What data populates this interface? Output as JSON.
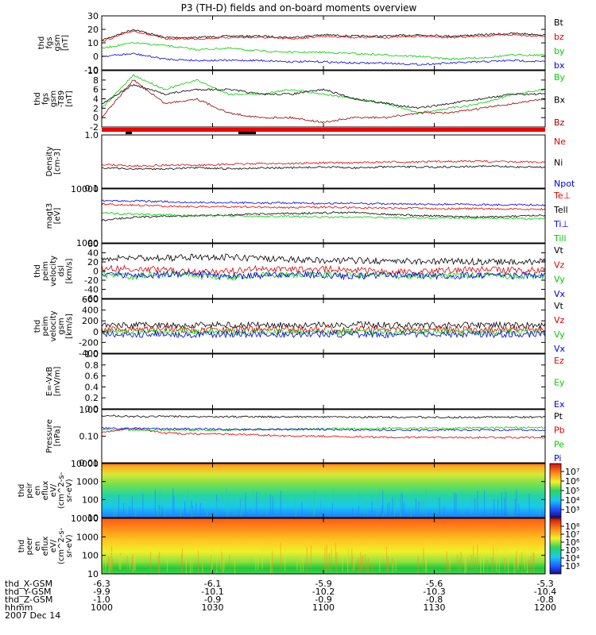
{
  "title": "P3 (TH-D) fields and on-board moments overview",
  "footer": {
    "labels": [
      "thd_X-GSM",
      "thd_Y-GSM",
      "thd_Z-GSM",
      "hhmm",
      "2007 Dec 14"
    ],
    "columns": [
      [
        "-6.3",
        "-9.9",
        "-1.0",
        "1000"
      ],
      [
        "-6.1",
        "-10.1",
        "-0.9",
        "1030"
      ],
      [
        "-5.9",
        "-10.2",
        "-0.9",
        "1100"
      ],
      [
        "-5.6",
        "-10.3",
        "-0.8",
        "1130"
      ],
      [
        "-5.3",
        "-10.4",
        "-0.8",
        "1200"
      ]
    ]
  },
  "colorbars": [
    {
      "ticks": [
        "10⁷",
        "10⁶",
        "10⁵",
        "10⁴",
        "10³"
      ]
    },
    {
      "ticks": [
        "10⁸",
        "10⁷",
        "10⁶",
        "10⁵",
        "10⁴",
        "10³"
      ]
    }
  ],
  "chart_data": {
    "type": "line",
    "x_range": [
      "1000",
      "1200"
    ],
    "x_ticks": [
      "1000",
      "1030",
      "1100",
      "1130",
      "1200"
    ],
    "panels": [
      {
        "ylabel": [
          "thd",
          "fgs",
          "gsm",
          "[nT]"
        ],
        "yticks": [
          "30",
          "20",
          "10",
          "0",
          "-10"
        ],
        "ylim": [
          -10,
          30
        ],
        "scale": "linear",
        "series": [
          {
            "name": "Bt",
            "color": "#000000",
            "values": [
              12,
              20,
              14,
              14,
              15,
              15,
              14,
              16,
              15,
              15,
              16,
              15,
              16,
              17,
              16
            ]
          },
          {
            "name": "bz",
            "color": "#dd0000",
            "values": [
              11,
              19,
              13,
              13,
              14,
              14,
              13,
              15,
              14,
              14,
              15,
              14,
              15,
              16,
              15
            ]
          },
          {
            "name": "by",
            "color": "#00cc00",
            "values": [
              6,
              10,
              8,
              5,
              6,
              4,
              3,
              3,
              2,
              1,
              0,
              -2,
              -1,
              1,
              1
            ]
          },
          {
            "name": "bx",
            "color": "#0000dd",
            "values": [
              0,
              2,
              -2,
              -3,
              -3,
              -3,
              -4,
              -4,
              -5,
              -5,
              -6,
              -5,
              -4,
              -3,
              -4
            ]
          }
        ]
      },
      {
        "ylabel": [
          "thd",
          "fgs",
          "gsm",
          "-T89",
          "[nT]"
        ],
        "yticks": [
          "10",
          "8",
          "6",
          "4",
          "2",
          "0",
          "-2"
        ],
        "ylim": [
          -2,
          10
        ],
        "scale": "linear",
        "series": [
          {
            "name": "By",
            "color": "#00cc00",
            "values": [
              2,
              9,
              6,
              8,
              5,
              5,
              6,
              5,
              4,
              3,
              1,
              2,
              3,
              5,
              6
            ]
          },
          {
            "name": "Bx",
            "color": "#000000",
            "values": [
              3,
              7,
              5,
              6,
              6,
              5,
              5,
              6,
              4,
              3,
              2,
              3,
              4,
              5,
              5
            ]
          },
          {
            "name": "Bz",
            "color": "#990000",
            "values": [
              0,
              8,
              3,
              4,
              1,
              0,
              0,
              -1,
              0,
              0,
              1,
              1,
              2,
              3,
              4
            ]
          }
        ]
      },
      {
        "ylabel": [
          "Density",
          "[cm-3]"
        ],
        "yticks": [
          "1.0",
          "0.1"
        ],
        "ylim": [
          0.1,
          1.0
        ],
        "scale": "log",
        "series": [
          {
            "name": "Ne",
            "color": "#dd0000",
            "values": [
              0.28,
              0.26,
              0.27,
              0.27,
              0.28,
              0.29,
              0.29,
              0.3,
              0.3,
              0.31,
              0.31,
              0.32,
              0.32,
              0.31,
              0.31
            ]
          },
          {
            "name": "Ni",
            "color": "#000000",
            "values": [
              0.24,
              0.23,
              0.23,
              0.24,
              0.23,
              0.24,
              0.24,
              0.25,
              0.24,
              0.25,
              0.25,
              0.25,
              0.26,
              0.25,
              0.25
            ]
          },
          {
            "name": "Npot",
            "color": "#0000dd",
            "values": []
          }
        ]
      },
      {
        "ylabel": [
          "magt3",
          "[eV]"
        ],
        "yticks": [
          "10000",
          "1000"
        ],
        "ylim": [
          1000,
          10000
        ],
        "scale": "log",
        "series": [
          {
            "name": "Te⊥",
            "color": "#dd0000",
            "values": [
              5200,
              5000,
              4800,
              4700,
              4700,
              4600,
              4500,
              4600,
              4500,
              4400,
              4400,
              4300,
              4300,
              4200,
              4200
            ]
          },
          {
            "name": "Tell",
            "color": "#000000",
            "values": [
              2600,
              3000,
              3100,
              3200,
              3300,
              3400,
              3500,
              3600,
              3700,
              3400,
              3200,
              3100,
              3000,
              3100,
              3200
            ]
          },
          {
            "name": "Ti⊥",
            "color": "#0000dd",
            "values": [
              6000,
              6000,
              5800,
              5600,
              5600,
              5500,
              5500,
              5400,
              5400,
              5300,
              5200,
              5200,
              5100,
              5100,
              5000
            ]
          },
          {
            "name": "Till",
            "color": "#00cc00",
            "values": [
              3600,
              3400,
              3300,
              3200,
              3200,
              3100,
              3100,
              3000,
              3000,
              2950,
              2900,
              2900,
              2850,
              2850,
              2800
            ]
          }
        ]
      },
      {
        "ylabel": [
          "thd",
          "peim",
          "velocity",
          "dsl",
          "[km/s]"
        ],
        "yticks": [
          "60",
          "40",
          "20",
          "0",
          "-20",
          "-40",
          "-60"
        ],
        "ylim": [
          -60,
          60
        ],
        "scale": "linear",
        "series": [
          {
            "name": "Vt",
            "color": "#000000",
            "values": [
              25,
              30,
              28,
              32,
              30,
              27,
              25,
              24,
              23,
              22,
              21,
              22,
              20,
              21,
              20
            ]
          },
          {
            "name": "Vz",
            "color": "#dd0000",
            "values": [
              8,
              5,
              4,
              -2,
              0,
              6,
              4,
              5,
              3,
              -3,
              -2,
              2,
              3,
              2,
              1
            ]
          },
          {
            "name": "Vy",
            "color": "#00cc00",
            "values": [
              -8,
              -12,
              -6,
              -10,
              -14,
              -8,
              -9,
              -7,
              -10,
              -8,
              -12,
              -10,
              -9,
              -11,
              -10
            ]
          },
          {
            "name": "Vx",
            "color": "#0000dd",
            "values": [
              -5,
              -10,
              -8,
              -6,
              -12,
              -10,
              -6,
              -9,
              -12,
              -8,
              -10,
              -12,
              -8,
              -10,
              -11
            ]
          }
        ]
      },
      {
        "ylabel": [
          "thd",
          "peim",
          "velocity",
          "gsm",
          "[km/s]"
        ],
        "yticks": [
          "600",
          "400",
          "200",
          "0",
          "-200",
          "-400"
        ],
        "ylim": [
          -400,
          600
        ],
        "scale": "linear",
        "series": [
          {
            "name": "Vt",
            "color": "#000000",
            "values": [
              120,
              110,
              130,
              115,
              125,
              120,
              118,
              122,
              130,
              120,
              115,
              118,
              120,
              116,
              118
            ]
          },
          {
            "name": "Vz",
            "color": "#dd0000",
            "values": [
              40,
              35,
              50,
              30,
              40,
              45,
              38,
              40,
              42,
              36,
              40,
              38,
              40,
              36,
              38
            ]
          },
          {
            "name": "Vy",
            "color": "#00cc00",
            "values": [
              -10,
              -5,
              0,
              -8,
              -6,
              -10,
              -4,
              -6,
              -8,
              -5,
              -6,
              -8,
              -5,
              -7,
              -6
            ]
          },
          {
            "name": "Vx",
            "color": "#0000dd",
            "values": [
              -40,
              -50,
              -45,
              -55,
              -50,
              -48,
              -52,
              -46,
              -50,
              -54,
              -48,
              -50,
              -52,
              -48,
              -50
            ]
          }
        ]
      },
      {
        "ylabel": [
          "E=-VxB",
          "[mV/m]"
        ],
        "yticks": [
          "1.0",
          "0.8",
          "0.6",
          "0.4",
          "0.2",
          "0.0"
        ],
        "ylim": [
          0,
          1
        ],
        "scale": "linear",
        "series": [
          {
            "name": "Ez",
            "color": "#dd0000",
            "values": []
          },
          {
            "name": "Ey",
            "color": "#00cc00",
            "values": []
          },
          {
            "name": "Ex",
            "color": "#0000dd",
            "values": []
          }
        ]
      },
      {
        "ylabel": [
          "Pressure",
          "[nPa]"
        ],
        "yticks": [
          "1.00",
          "0.10",
          "0.01"
        ],
        "ylim": [
          0.01,
          1.0
        ],
        "scale": "log",
        "series": [
          {
            "name": "Pt",
            "color": "#000000",
            "values": [
              0.6,
              0.55,
              0.55,
              0.54,
              0.54,
              0.53,
              0.53,
              0.52,
              0.52,
              0.52,
              0.51,
              0.51,
              0.51,
              0.52,
              0.52
            ]
          },
          {
            "name": "Pb",
            "color": "#dd0000",
            "values": [
              0.14,
              0.2,
              0.13,
              0.12,
              0.12,
              0.11,
              0.1,
              0.1,
              0.095,
              0.09,
              0.09,
              0.09,
              0.09,
              0.088,
              0.088
            ]
          },
          {
            "name": "Pe",
            "color": "#00cc00",
            "values": [
              0.18,
              0.17,
              0.17,
              0.17,
              0.17,
              0.18,
              0.18,
              0.19,
              0.19,
              0.2,
              0.2,
              0.2,
              0.21,
              0.21,
              0.21
            ]
          },
          {
            "name": "Pi",
            "color": "#0000dd",
            "values": [
              0.2,
              0.19,
              0.19,
              0.19,
              0.18,
              0.18,
              0.18,
              0.18,
              0.17,
              0.17,
              0.17,
              0.17,
              0.17,
              0.17,
              0.17
            ]
          }
        ]
      },
      {
        "ylabel": [
          "thd",
          "peir",
          "en",
          "eflux",
          "eV/",
          "(cm^2-s-",
          "sr-eV)"
        ],
        "yticks": [
          "10000",
          "1000",
          "100",
          "10"
        ],
        "ylim": [
          10,
          30000
        ],
        "scale": "log",
        "type": "heatmap",
        "colorbar": "log",
        "crange": [
          1000,
          10000000
        ]
      },
      {
        "ylabel": [
          "thd",
          "peer",
          "en",
          "eflux",
          "eV/",
          "(cm^2-s-",
          "sr-eV)"
        ],
        "yticks": [
          "10000",
          "1000",
          "100",
          "10"
        ],
        "ylim": [
          10,
          30000
        ],
        "scale": "log",
        "type": "heatmap",
        "colorbar": "log",
        "crange": [
          1000,
          100000000
        ]
      }
    ]
  }
}
